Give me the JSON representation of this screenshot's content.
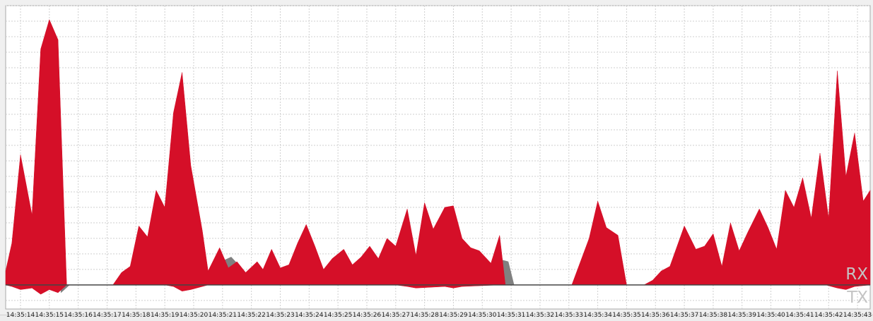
{
  "chart_data": {
    "type": "area",
    "title": "",
    "xlabel": "",
    "ylabel": "",
    "grid": true,
    "ylim": [
      -1.55,
      18
    ],
    "x_tick_labels": [
      "14:35:14",
      "14:35:15",
      "14:35:16",
      "14:35:17",
      "14:35:18",
      "14:35:19",
      "14:35:20",
      "14:35:21",
      "14:35:22",
      "14:35:23",
      "14:35:24",
      "14:35:25",
      "14:35:26",
      "14:35:27",
      "14:35:28",
      "14:35:29",
      "14:35:30",
      "14:35:31",
      "14:35:32",
      "14:35:33",
      "14:35:34",
      "14:35:35",
      "14:35:36",
      "14:35:37",
      "14:35:38",
      "14:35:39",
      "14:35:40",
      "14:35:41",
      "14:35:42",
      "14:35:43"
    ],
    "series": [
      {
        "color": "#808080",
        "points": [
          [
            "14:35:15.4",
            -0.5
          ],
          [
            "14:35:15.7",
            0
          ],
          [
            "14:35:20.4",
            0
          ],
          [
            "14:35:20.6",
            1.2
          ],
          [
            "14:35:21.3",
            1.8
          ],
          [
            "14:35:21.6",
            1.2
          ],
          [
            "14:35:21.7",
            0
          ],
          [
            "14:35:26.8",
            0
          ],
          [
            "14:35:26.9",
            2.2
          ],
          [
            "14:35:27.3",
            3.0
          ],
          [
            "14:35:27.5",
            0
          ],
          [
            "14:35:30.5",
            0
          ],
          [
            "14:35:30.7",
            1.6
          ],
          [
            "14:35:30.9",
            1.5
          ],
          [
            "14:35:31.1",
            0
          ]
        ]
      },
      {
        "name": "RX",
        "color": "#d50f28",
        "points": [
          [
            "14:35:13.4",
            0.9
          ],
          [
            "14:35:13.7",
            2.7
          ],
          [
            "14:35:14.0",
            8.4
          ],
          [
            "14:35:14.4",
            4.5
          ],
          [
            "14:35:14.7",
            15.2
          ],
          [
            "14:35:15.0",
            17.1
          ],
          [
            "14:35:15.3",
            15.8
          ],
          [
            "14:35:15.6",
            0
          ],
          [
            "14:35:17.2",
            0
          ],
          [
            "14:35:17.5",
            0.8
          ],
          [
            "14:35:17.8",
            1.2
          ],
          [
            "14:35:18.1",
            3.8
          ],
          [
            "14:35:18.4",
            3.1
          ],
          [
            "14:35:18.7",
            6.1
          ],
          [
            "14:35:19.0",
            5.0
          ],
          [
            "14:35:19.3",
            11.1
          ],
          [
            "14:35:19.6",
            13.7
          ],
          [
            "14:35:19.9",
            7.7
          ],
          [
            "14:35:20.3",
            3.5
          ],
          [
            "14:35:20.5",
            0.9
          ],
          [
            "14:35:20.9",
            2.4
          ],
          [
            "14:35:21.2",
            1.1
          ],
          [
            "14:35:21.5",
            1.5
          ],
          [
            "14:35:21.8",
            0.8
          ],
          [
            "14:35:22.2",
            1.5
          ],
          [
            "14:35:22.4",
            1.0
          ],
          [
            "14:35:22.7",
            2.3
          ],
          [
            "14:35:23.0",
            1.1
          ],
          [
            "14:35:23.3",
            1.3
          ],
          [
            "14:35:23.6",
            2.7
          ],
          [
            "14:35:23.9",
            3.9
          ],
          [
            "14:35:24.2",
            2.5
          ],
          [
            "14:35:24.5",
            1.0
          ],
          [
            "14:35:24.8",
            1.7
          ],
          [
            "14:35:25.2",
            2.3
          ],
          [
            "14:35:25.5",
            1.3
          ],
          [
            "14:35:25.8",
            1.8
          ],
          [
            "14:35:26.1",
            2.5
          ],
          [
            "14:35:26.4",
            1.7
          ],
          [
            "14:35:26.7",
            3.0
          ],
          [
            "14:35:27.0",
            2.5
          ],
          [
            "14:35:27.4",
            4.9
          ],
          [
            "14:35:27.7",
            1.9
          ],
          [
            "14:35:28.0",
            5.3
          ],
          [
            "14:35:28.3",
            3.6
          ],
          [
            "14:35:28.7",
            5.0
          ],
          [
            "14:35:29.0",
            5.1
          ],
          [
            "14:35:29.3",
            3.0
          ],
          [
            "14:35:29.6",
            2.4
          ],
          [
            "14:35:29.9",
            2.2
          ],
          [
            "14:35:30.3",
            1.4
          ],
          [
            "14:35:30.6",
            3.2
          ],
          [
            "14:35:30.8",
            0
          ],
          [
            "14:35:33.1",
            0
          ],
          [
            "14:35:33.7",
            3.0
          ],
          [
            "14:35:34.0",
            5.4
          ],
          [
            "14:35:34.3",
            3.7
          ],
          [
            "14:35:34.7",
            3.2
          ],
          [
            "14:35:35.0",
            0
          ],
          [
            "14:35:35.6",
            0
          ],
          [
            "14:35:35.9",
            0.3
          ],
          [
            "14:35:36.2",
            0.9
          ],
          [
            "14:35:36.5",
            1.2
          ],
          [
            "14:35:37.0",
            3.8
          ],
          [
            "14:35:37.4",
            2.3
          ],
          [
            "14:35:37.7",
            2.5
          ],
          [
            "14:35:38.0",
            3.3
          ],
          [
            "14:35:38.3",
            1.2
          ],
          [
            "14:35:38.6",
            4.0
          ],
          [
            "14:35:38.9",
            2.2
          ],
          [
            "14:35:39.2",
            3.4
          ],
          [
            "14:35:39.6",
            4.9
          ],
          [
            "14:35:39.9",
            3.7
          ],
          [
            "14:35:40.2",
            2.3
          ],
          [
            "14:35:40.5",
            6.1
          ],
          [
            "14:35:40.8",
            5.0
          ],
          [
            "14:35:41.1",
            6.9
          ],
          [
            "14:35:41.4",
            4.3
          ],
          [
            "14:35:41.7",
            8.5
          ],
          [
            "14:35:42.0",
            4.3
          ],
          [
            "14:35:42.3",
            13.8
          ],
          [
            "14:35:42.6",
            7.0
          ],
          [
            "14:35:42.9",
            9.8
          ],
          [
            "14:35:43.2",
            5.4
          ],
          [
            "14:35:43.5",
            6.1
          ]
        ]
      },
      {
        "name": "TX",
        "color": "#d50f28",
        "points": [
          [
            "14:35:13.4",
            0
          ],
          [
            "14:35:13.7",
            -0.1
          ],
          [
            "14:35:14.0",
            -0.3
          ],
          [
            "14:35:14.4",
            -0.2
          ],
          [
            "14:35:14.7",
            -0.6
          ],
          [
            "14:35:15.0",
            -0.3
          ],
          [
            "14:35:15.3",
            -0.5
          ],
          [
            "14:35:15.6",
            0
          ],
          [
            "14:35:19.0",
            0
          ],
          [
            "14:35:19.3",
            -0.1
          ],
          [
            "14:35:19.6",
            -0.4
          ],
          [
            "14:35:19.9",
            -0.3
          ],
          [
            "14:35:20.5",
            0
          ],
          [
            "14:35:27.0",
            0
          ],
          [
            "14:35:27.4",
            -0.1
          ],
          [
            "14:35:27.7",
            -0.2
          ],
          [
            "14:35:28.7",
            -0.1
          ],
          [
            "14:35:29.0",
            -0.2
          ],
          [
            "14:35:29.3",
            -0.1
          ],
          [
            "14:35:30.6",
            0
          ],
          [
            "14:35:41.9",
            0
          ],
          [
            "14:35:42.3",
            -0.2
          ],
          [
            "14:35:42.6",
            -0.3
          ],
          [
            "14:35:42.9",
            -0.1
          ],
          [
            "14:35:43.5",
            0
          ]
        ]
      }
    ],
    "series_labels": {
      "rx": "RX",
      "tx": "TX"
    }
  }
}
